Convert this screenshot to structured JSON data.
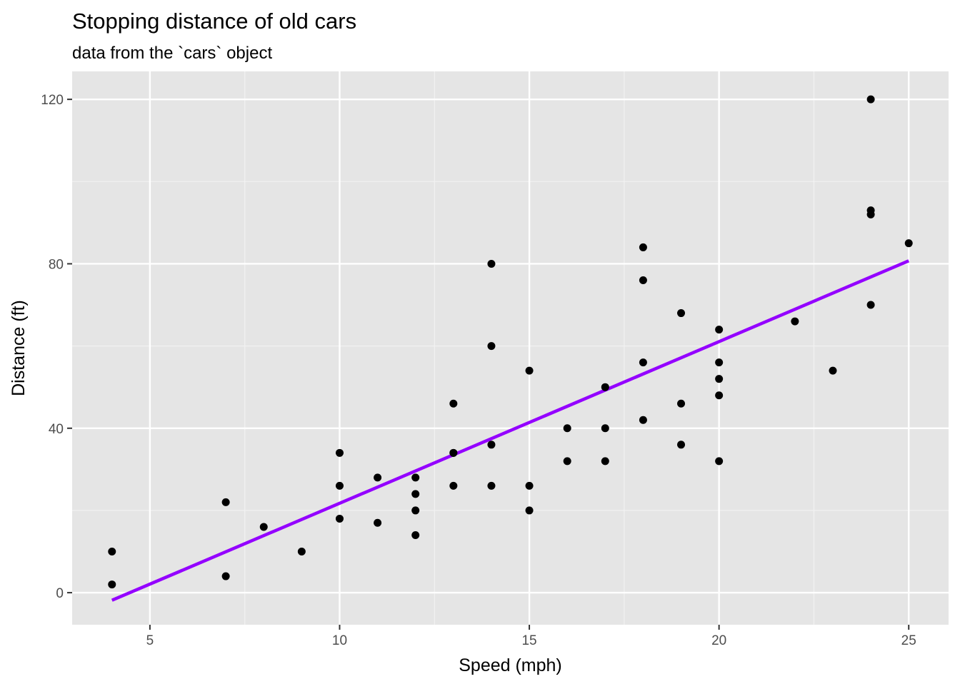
{
  "chart_data": {
    "type": "scatter",
    "title": "Stopping distance of old cars",
    "subtitle": "data from the `cars` object",
    "xlabel": "Speed (mph)",
    "ylabel": "Distance (ft)",
    "xlim": [
      2.95,
      26.05
    ],
    "ylim": [
      -7.8,
      126.8
    ],
    "xticks": [
      5,
      10,
      15,
      20,
      25
    ],
    "yticks": [
      0,
      40,
      80,
      120
    ],
    "x_tick_labels": [
      "5",
      "10",
      "15",
      "20",
      "25"
    ],
    "y_tick_labels": [
      "0",
      "40",
      "80",
      "120"
    ],
    "grid": true,
    "x": [
      4,
      4,
      7,
      7,
      8,
      9,
      10,
      10,
      10,
      11,
      11,
      12,
      12,
      12,
      12,
      13,
      13,
      13,
      13,
      14,
      14,
      14,
      14,
      15,
      15,
      15,
      16,
      16,
      17,
      17,
      17,
      18,
      18,
      18,
      18,
      19,
      19,
      19,
      20,
      20,
      20,
      20,
      20,
      22,
      23,
      24,
      24,
      24,
      24,
      25
    ],
    "y": [
      2,
      10,
      4,
      22,
      16,
      10,
      18,
      26,
      34,
      17,
      28,
      14,
      20,
      24,
      28,
      26,
      34,
      34,
      46,
      26,
      36,
      60,
      80,
      20,
      26,
      54,
      32,
      40,
      32,
      40,
      50,
      42,
      56,
      76,
      84,
      36,
      46,
      68,
      32,
      48,
      52,
      56,
      64,
      66,
      54,
      70,
      92,
      93,
      120,
      85
    ],
    "fit_line": {
      "x": [
        4,
        25
      ],
      "y": [
        -1.85,
        80.73
      ],
      "color": "#9400FF"
    },
    "point_color": "#000000",
    "panel_color": "#E5E5E5"
  }
}
